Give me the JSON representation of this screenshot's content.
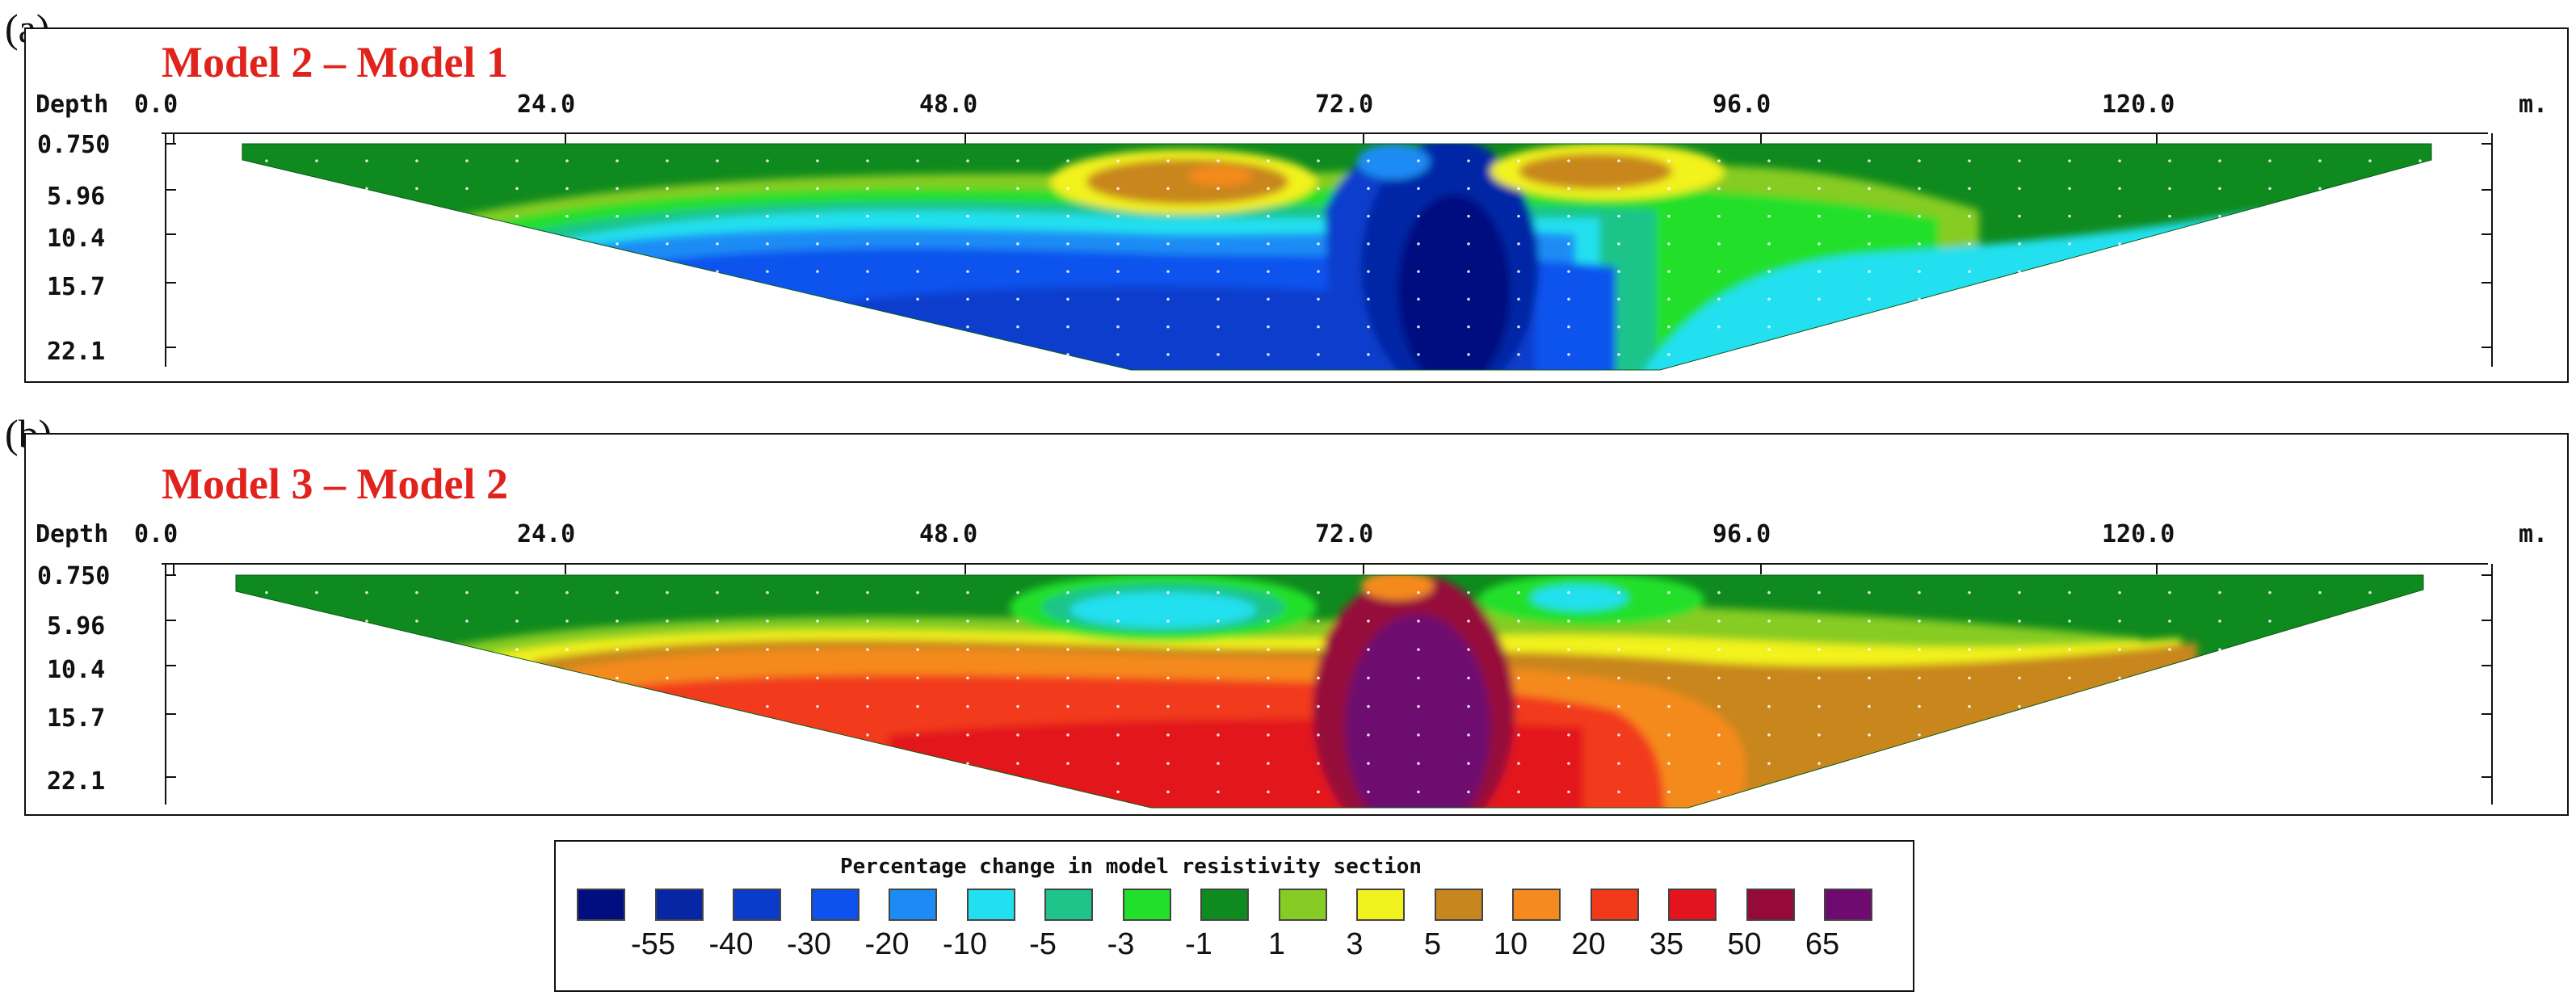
{
  "panels": [
    {
      "label": "(a)",
      "title": "Model 2 – Model 1",
      "x_axis_title": "Depth",
      "x_ticks": [
        "0.0",
        "24.0",
        "48.0",
        "72.0",
        "96.0",
        "120.0"
      ],
      "x_unit": "m.",
      "depth_ticks": [
        "0.750",
        "5.96",
        "10.4",
        "15.7",
        "22.1"
      ]
    },
    {
      "label": "(b)",
      "title": "Model 3 – Model 2",
      "x_axis_title": "Depth",
      "x_ticks": [
        "0.0",
        "24.0",
        "48.0",
        "72.0",
        "96.0",
        "120.0"
      ],
      "x_unit": "m.",
      "depth_ticks": [
        "0.750",
        "5.96",
        "10.4",
        "15.7",
        "22.1"
      ]
    }
  ],
  "legend": {
    "title": "Percentage change in model resistivity section",
    "values": [
      "-55",
      "-40",
      "-30",
      "-20",
      "-10",
      "-5",
      "-3",
      "-1",
      "1",
      "3",
      "5",
      "10",
      "20",
      "35",
      "50",
      "65"
    ],
    "colors": [
      "#000e80",
      "#0626a6",
      "#0a3ccc",
      "#0d52ee",
      "#1c8cf4",
      "#22e0f0",
      "#1fc48a",
      "#22e02a",
      "#0f8a1e",
      "#86cc24",
      "#f2f21e",
      "#c8861e",
      "#f58a1e",
      "#f23a1a",
      "#e3141e",
      "#960a3a",
      "#6e0a70"
    ]
  },
  "chart_data": [
    {
      "type": "heatmap",
      "title": "Model 2 – Model 1",
      "xlabel": "",
      "ylabel": "Depth",
      "x_unit": "m.",
      "x_ticks": [
        0.0,
        24.0,
        48.0,
        72.0,
        96.0,
        120.0
      ],
      "depth_ticks": [
        0.75,
        5.96,
        10.4,
        15.7,
        22.1
      ],
      "xlim": [
        0,
        130
      ],
      "ylim": [
        22.1,
        0.75
      ],
      "background_value": 1,
      "features": [
        {
          "x": [
            8,
            128
          ],
          "depth": [
            0.75,
            5.0
          ],
          "value": 1
        },
        {
          "x": [
            18,
            110
          ],
          "depth": [
            3.5,
            9.5
          ],
          "value": -3
        },
        {
          "x": [
            22,
            105
          ],
          "depth": [
            6.0,
            12.0
          ],
          "value": -10
        },
        {
          "x": [
            30,
            90
          ],
          "depth": [
            9.5,
            22.1
          ],
          "value": -30
        },
        {
          "x": [
            72,
            86
          ],
          "depth": [
            1.5,
            22.1
          ],
          "value": -55
        },
        {
          "x": [
            56,
            70
          ],
          "depth": [
            2.0,
            8.0
          ],
          "value": 10
        },
        {
          "x": [
            61,
            67
          ],
          "depth": [
            3.0,
            6.0
          ],
          "value": 20
        },
        {
          "x": [
            82,
            94
          ],
          "depth": [
            1.0,
            6.0
          ],
          "value": 10
        },
        {
          "x": [
            88,
            122
          ],
          "depth": [
            6.0,
            16.0
          ],
          "value": -10
        }
      ]
    },
    {
      "type": "heatmap",
      "title": "Model 3 – Model 2",
      "xlabel": "",
      "ylabel": "Depth",
      "x_unit": "m.",
      "x_ticks": [
        0.0,
        24.0,
        48.0,
        72.0,
        96.0,
        120.0
      ],
      "depth_ticks": [
        0.75,
        5.96,
        10.4,
        15.7,
        22.1
      ],
      "xlim": [
        0,
        130
      ],
      "ylim": [
        22.1,
        0.75
      ],
      "background_value": 1,
      "features": [
        {
          "x": [
            8,
            128
          ],
          "depth": [
            0.75,
            5.0
          ],
          "value": 1
        },
        {
          "x": [
            18,
            112
          ],
          "depth": [
            5.0,
            12.0
          ],
          "value": 5
        },
        {
          "x": [
            22,
            108
          ],
          "depth": [
            7.0,
            14.0
          ],
          "value": 20
        },
        {
          "x": [
            30,
            88
          ],
          "depth": [
            11.0,
            22.1
          ],
          "value": 35
        },
        {
          "x": [
            70,
            84
          ],
          "depth": [
            2.0,
            22.1
          ],
          "value": 65
        },
        {
          "x": [
            57,
            68
          ],
          "depth": [
            2.0,
            7.0
          ],
          "value": -10
        },
        {
          "x": [
            84,
            92
          ],
          "depth": [
            1.5,
            5.5
          ],
          "value": -10
        },
        {
          "x": [
            88,
            122
          ],
          "depth": [
            8.0,
            16.0
          ],
          "value": 10
        }
      ]
    }
  ]
}
